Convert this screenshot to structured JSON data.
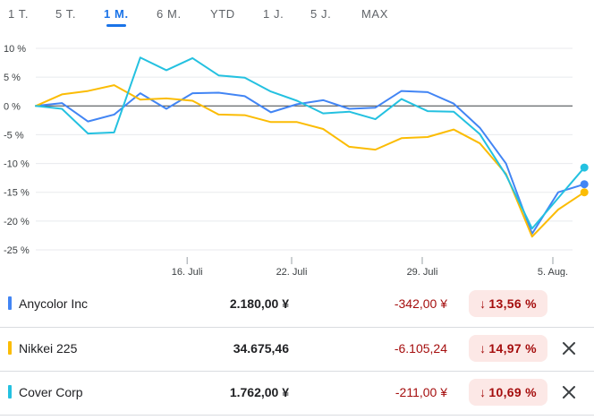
{
  "range_tabs": [
    "1 T.",
    "5 T.",
    "1 M.",
    "6 M.",
    "YTD",
    "1 J.",
    "5 J.",
    "MAX"
  ],
  "active_tab": "1 M.",
  "chart_data": {
    "type": "line",
    "y_ticks": [
      "10 %",
      "5 %",
      "0 %",
      "-5 %",
      "-10 %",
      "-15 %",
      "-20 %",
      "-25 %"
    ],
    "y_tick_values": [
      10,
      5,
      0,
      -5,
      -10,
      -15,
      -20,
      -25
    ],
    "ylim": [
      -25,
      10
    ],
    "x_labels": [
      "16. Juli",
      "22. Juli",
      "29. Juli",
      "5. Aug."
    ],
    "x_label_index": [
      6,
      10,
      15,
      20
    ],
    "n_points": 22,
    "series": [
      {
        "name": "Anycolor Inc",
        "color": "#4285f4",
        "values": [
          0.0,
          0.5,
          -2.7,
          -1.5,
          2.2,
          -0.5,
          2.2,
          2.3,
          1.7,
          -1.1,
          0.3,
          1.0,
          -0.5,
          -0.3,
          2.6,
          2.4,
          0.4,
          -3.8,
          -10.0,
          -22.2,
          -15.0,
          -13.6
        ]
      },
      {
        "name": "Nikkei 225",
        "color": "#fbbc04",
        "values": [
          0.0,
          2.0,
          2.6,
          3.6,
          1.1,
          1.3,
          0.9,
          -1.5,
          -1.6,
          -2.8,
          -2.8,
          -4.0,
          -7.1,
          -7.6,
          -5.6,
          -5.4,
          -4.1,
          -6.5,
          -11.8,
          -22.7,
          -18.0,
          -15.0
        ]
      },
      {
        "name": "Cover Corp",
        "color": "#24c1e0",
        "values": [
          0.0,
          -0.5,
          -4.8,
          -4.6,
          8.4,
          6.2,
          8.3,
          5.3,
          4.9,
          2.5,
          0.9,
          -1.3,
          -1.0,
          -2.3,
          1.2,
          -0.9,
          -1.0,
          -4.9,
          -12.0,
          -21.3,
          -16.0,
          -10.7
        ]
      }
    ]
  },
  "rows": [
    {
      "name": "Anycolor Inc",
      "color": "#4285f4",
      "price": "2.180,00 ¥",
      "change": "-342,00 ¥",
      "percent": "13,56 %",
      "closable": false
    },
    {
      "name": "Nikkei 225",
      "color": "#fbbc04",
      "price": "34.675,46",
      "change": "-6.105,24",
      "percent": "14,97 %",
      "closable": true
    },
    {
      "name": "Cover Corp",
      "color": "#24c1e0",
      "price": "1.762,00 ¥",
      "change": "-211,00 ¥",
      "percent": "10,69 %",
      "closable": true
    }
  ]
}
